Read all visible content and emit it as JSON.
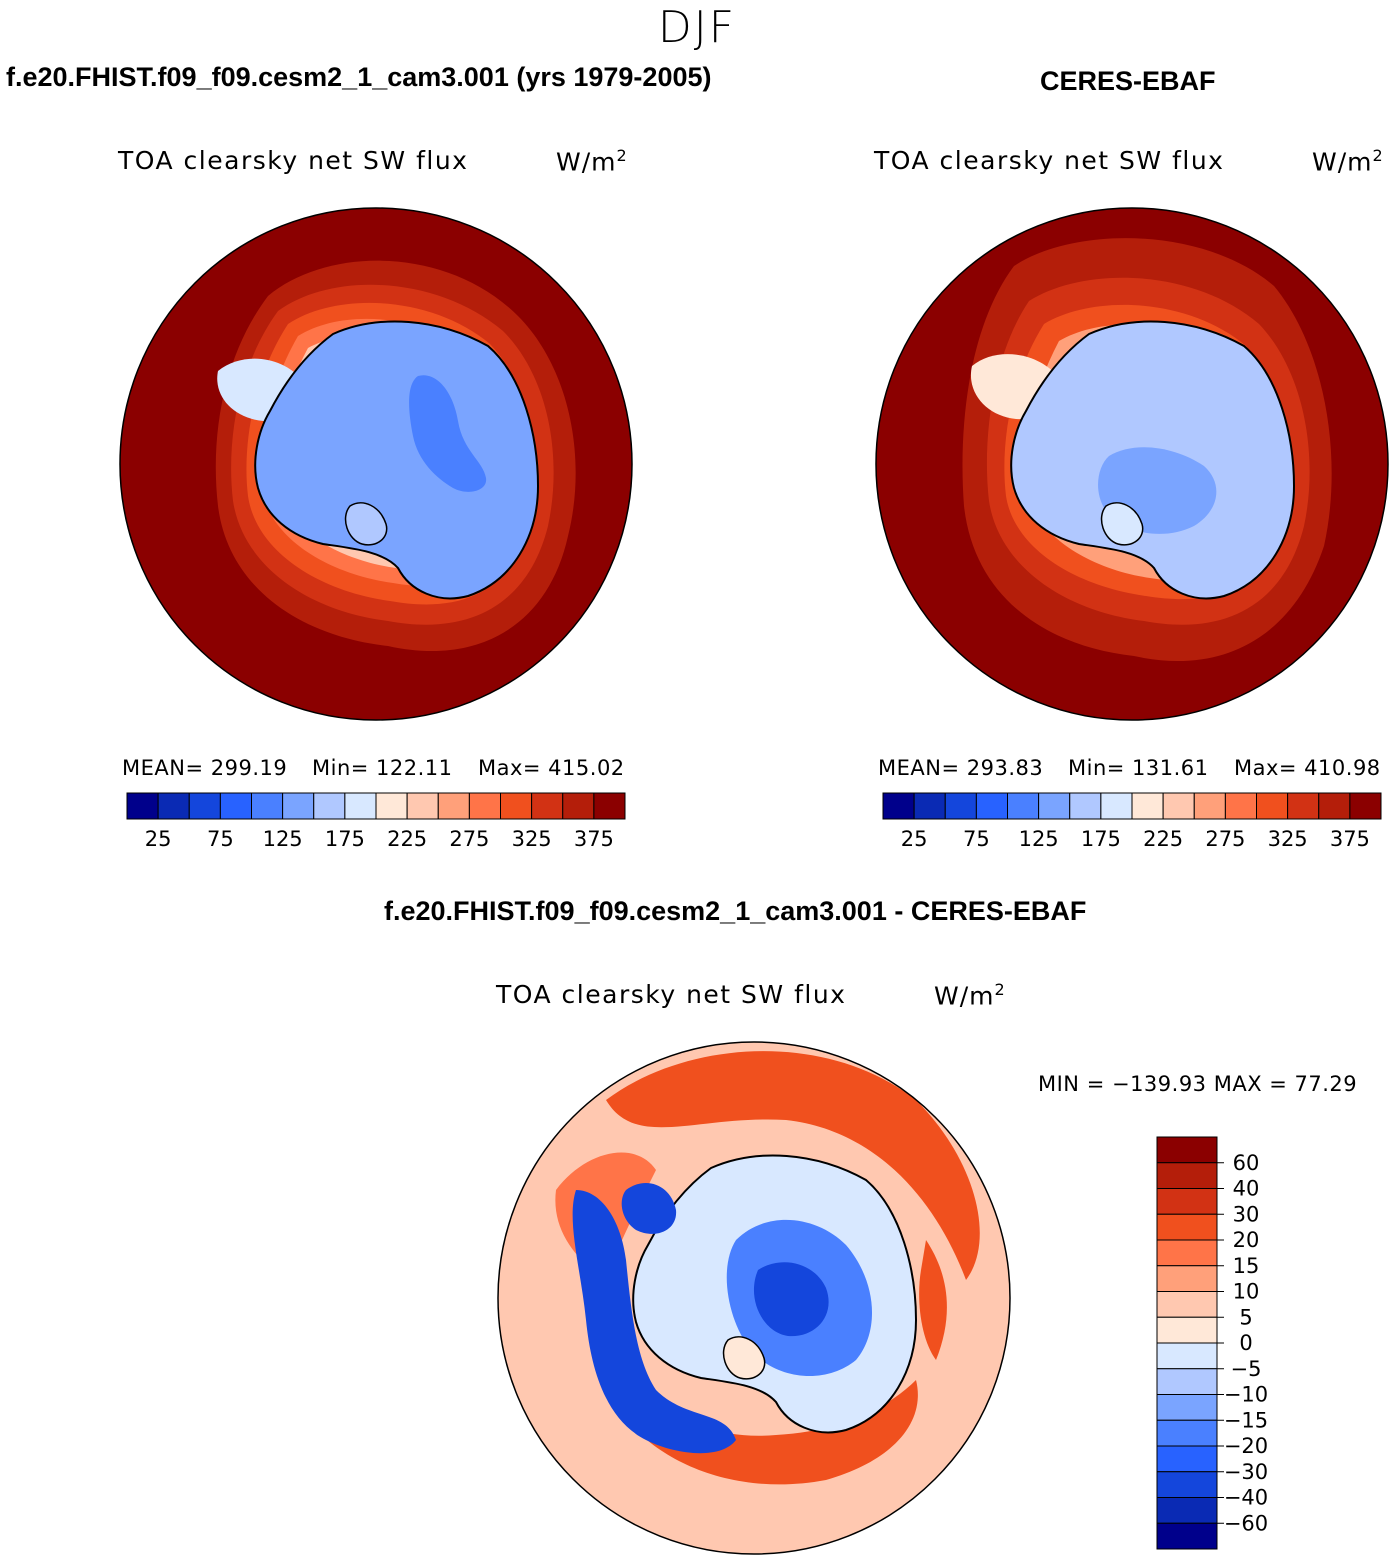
{
  "season": "DJF",
  "panels": [
    {
      "case_title": "f.e20.FHIST.f09_f09.cesm2_1_cam3.001 (yrs 1979-2005)",
      "variable": "TOA clearsky net SW flux",
      "units": "W/m",
      "units_exp": "2",
      "stats": {
        "mean": "MEAN= 299.19",
        "min": "Min= 122.11",
        "max": "Max= 415.02"
      }
    },
    {
      "case_title": "CERES-EBAF",
      "variable": "TOA clearsky net SW flux",
      "units": "W/m",
      "units_exp": "2",
      "stats": {
        "mean": "MEAN= 293.83",
        "min": "Min= 131.61",
        "max": "Max= 410.98"
      }
    },
    {
      "case_title": "f.e20.FHIST.f09_f09.cesm2_1_cam3.001 - CERES-EBAF",
      "variable": "TOA clearsky net SW flux",
      "units": "W/m",
      "units_exp": "2",
      "stats": {
        "minmax": "MIN = −139.93 MAX =   77.29"
      }
    }
  ],
  "colorbar_main": {
    "colors": [
      "#00008b",
      "#0a2ab4",
      "#1446dc",
      "#2862ff",
      "#4a80ff",
      "#7aa4ff",
      "#b0c8ff",
      "#d8e8ff",
      "#ffe8d8",
      "#ffc8b0",
      "#ffa07a",
      "#ff7448",
      "#f0501e",
      "#d23214",
      "#b41e0a",
      "#8b0000"
    ],
    "labels": [
      "25",
      "75",
      "125",
      "175",
      "225",
      "275",
      "325",
      "375"
    ]
  },
  "colorbar_diff": {
    "colors": [
      "#00008b",
      "#0a2ab4",
      "#1446dc",
      "#2862ff",
      "#4a80ff",
      "#7aa4ff",
      "#b0c8ff",
      "#d8e8ff",
      "#ffe8d8",
      "#ffc8b0",
      "#ffa07a",
      "#ff7448",
      "#f0501e",
      "#d23214",
      "#b41e0a",
      "#8b0000"
    ],
    "labels": [
      "60",
      "40",
      "30",
      "20",
      "15",
      "10",
      "5",
      "0",
      "−5",
      "−10",
      "−15",
      "−20",
      "−30",
      "−40",
      "−60"
    ]
  }
}
